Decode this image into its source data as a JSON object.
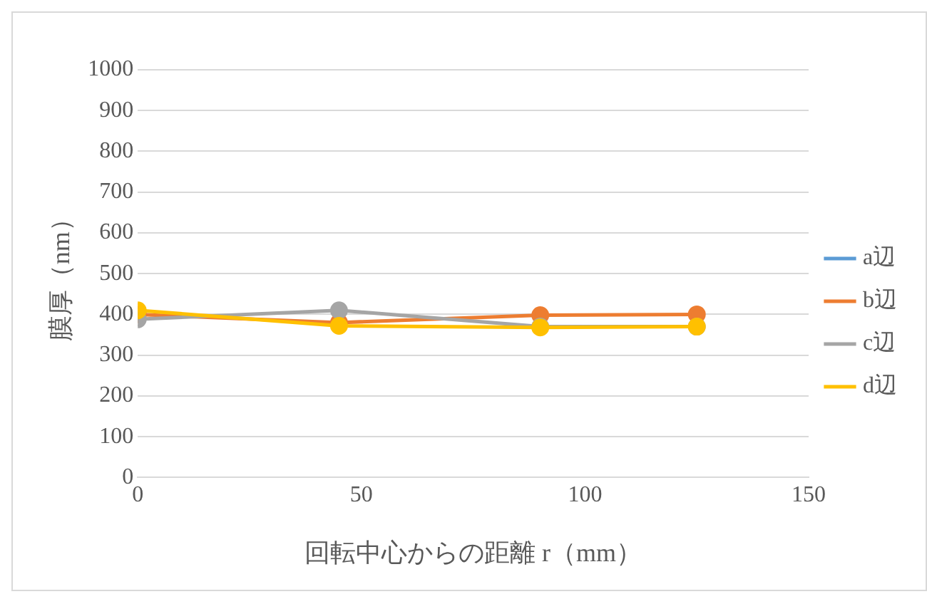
{
  "chart_data": {
    "type": "line",
    "xlabel": "回転中心からの距離 r（mm）",
    "ylabel": "膜厚（nm）",
    "x": [
      0,
      45,
      90,
      125
    ],
    "series": [
      {
        "name": "a辺",
        "color": "#5b9bd5",
        "values": [
          null,
          null,
          null,
          null
        ]
      },
      {
        "name": "b辺",
        "color": "#ed7d31",
        "values": [
          400,
          380,
          398,
          400
        ]
      },
      {
        "name": "c辺",
        "color": "#a5a5a5",
        "values": [
          388,
          410,
          370,
          370
        ]
      },
      {
        "name": "d辺",
        "color": "#ffc000",
        "values": [
          410,
          372,
          368,
          370
        ]
      }
    ],
    "xlim": [
      0,
      150
    ],
    "xticks": [
      0,
      50,
      100,
      150
    ],
    "ylim": [
      0,
      1000
    ],
    "yticks": [
      0,
      100,
      200,
      300,
      400,
      500,
      600,
      700,
      800,
      900,
      1000
    ],
    "grid": "y",
    "legend": "right",
    "marker": "circle",
    "line_style": "solid"
  }
}
